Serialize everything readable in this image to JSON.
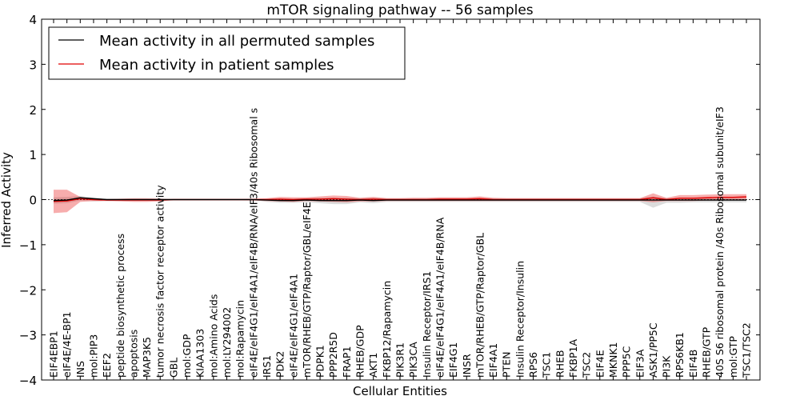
{
  "chart_data": {
    "type": "line",
    "title": "mTOR signaling pathway -- 56 samples",
    "xlabel": "Cellular Entities",
    "ylabel": "Inferred Activity",
    "ylim": [
      -4,
      4
    ],
    "yticks": [
      4,
      3,
      2,
      1,
      0,
      -1,
      -2,
      -3,
      -4
    ],
    "ytick_labels": [
      "4",
      "3",
      "2",
      "1",
      "0",
      "−1",
      "−2",
      "−3",
      "−4"
    ],
    "legend": {
      "placement": "top-left",
      "entries": [
        {
          "label": "Mean activity in all permuted samples",
          "color": "#000000"
        },
        {
          "label": "Mean activity in patient samples",
          "color": "#e00000"
        }
      ]
    },
    "categories": [
      "EIF4EBP1",
      "eIF4E/4E-BP1",
      "INS",
      "mol:PIP3",
      "EEF2",
      "peptide biosynthetic process",
      "apoptosis",
      "MAP3K5",
      "tumor necrosis factor receptor activity",
      "GBL",
      "mol:GDP",
      "KIAA1303",
      "mol:Amino Acids",
      "mol:LY294002",
      "mol:Rapamycin",
      "eIF4E/eIF4G1/eIF4A1/eIF4B/RNA/eIF3/40s Ribosomal s",
      "IRS1",
      "PDK2",
      "eIF4E/eIF4G1/eIF4A1",
      "mTOR/RHEB/GTP/Raptor/GBL/eIF4E",
      "PDPK1",
      "PPP2R5D",
      "FRAP1",
      "RHEB/GDP",
      "AKT1",
      "FKBP12/Rapamycin",
      "PIK3R1",
      "PIK3CA",
      "Insulin Receptor/IRS1",
      "eIF4E/eIF4G1/eIF4A1/eIF4B/RNA",
      "EIF4G1",
      "INSR",
      "mTOR/RHEB/GTP/Raptor/GBL",
      "EIF4A1",
      "PTEN",
      "Insulin Receptor/Insulin",
      "RPS6",
      "TSC1",
      "RHEB",
      "FKBP1A",
      "TSC2",
      "EIF4E",
      "MKNK1",
      "PPP5C",
      "EIF3A",
      "ASK1/PP5C",
      "PI3K",
      "RPS6KB1",
      "EIF4B",
      "RHEB/GTP",
      "40S S6 ribosomal protein /40s Ribosomal subunit/eIF3",
      "mol:GTP",
      "TSC1/TSC2"
    ],
    "series": [
      {
        "name": "Mean activity in all permuted samples",
        "color": "#000000",
        "values": [
          -0.02,
          -0.01,
          0.04,
          0.02,
          0.0,
          0.0,
          0.0,
          0.0,
          0.0,
          0.0,
          0.0,
          0.0,
          0.0,
          0.0,
          0.0,
          0.0,
          -0.01,
          -0.02,
          -0.02,
          -0.01,
          -0.02,
          -0.02,
          -0.02,
          -0.01,
          -0.02,
          -0.01,
          -0.01,
          -0.01,
          -0.01,
          -0.01,
          -0.01,
          -0.01,
          -0.01,
          -0.01,
          -0.01,
          -0.01,
          -0.01,
          -0.01,
          -0.01,
          -0.01,
          -0.01,
          -0.01,
          -0.01,
          -0.01,
          -0.01,
          -0.01,
          -0.01,
          -0.01,
          -0.01,
          -0.01,
          -0.01,
          -0.01,
          -0.01
        ],
        "band_upper": [
          0.05,
          0.06,
          0.08,
          0.04,
          0.02,
          0.02,
          0.02,
          0.02,
          0.02,
          0.01,
          0.01,
          0.01,
          0.01,
          0.01,
          0.01,
          0.01,
          0.02,
          0.02,
          0.02,
          0.03,
          0.04,
          0.04,
          0.04,
          0.03,
          0.04,
          0.03,
          0.03,
          0.03,
          0.03,
          0.03,
          0.03,
          0.03,
          0.03,
          0.03,
          0.03,
          0.03,
          0.03,
          0.03,
          0.03,
          0.03,
          0.03,
          0.03,
          0.03,
          0.03,
          0.03,
          0.07,
          0.03,
          0.03,
          0.03,
          0.03,
          0.03,
          0.03,
          0.03
        ],
        "band_lower": [
          -0.09,
          -0.08,
          -0.02,
          -0.04,
          -0.03,
          -0.02,
          -0.02,
          -0.02,
          -0.02,
          -0.01,
          -0.01,
          -0.01,
          -0.01,
          -0.01,
          -0.01,
          -0.01,
          -0.05,
          -0.07,
          -0.07,
          -0.06,
          -0.08,
          -0.1,
          -0.1,
          -0.06,
          -0.08,
          -0.05,
          -0.05,
          -0.05,
          -0.05,
          -0.05,
          -0.05,
          -0.05,
          -0.05,
          -0.05,
          -0.05,
          -0.05,
          -0.05,
          -0.05,
          -0.05,
          -0.05,
          -0.05,
          -0.05,
          -0.05,
          -0.05,
          -0.05,
          -0.18,
          -0.07,
          -0.07,
          -0.06,
          -0.06,
          -0.06,
          -0.06,
          -0.06
        ]
      },
      {
        "name": "Mean activity in patient samples",
        "color": "#e00000",
        "values": [
          -0.04,
          -0.03,
          0.02,
          0.0,
          -0.01,
          -0.01,
          -0.01,
          -0.01,
          -0.01,
          0.0,
          0.0,
          0.0,
          0.0,
          0.0,
          0.0,
          0.0,
          0.0,
          0.01,
          0.0,
          0.01,
          0.01,
          0.02,
          0.01,
          0.0,
          0.01,
          0.0,
          0.0,
          0.0,
          0.0,
          0.01,
          0.01,
          0.01,
          0.02,
          0.0,
          0.0,
          0.0,
          0.0,
          0.0,
          0.0,
          0.0,
          0.0,
          0.0,
          0.0,
          0.0,
          0.0,
          0.04,
          0.0,
          0.03,
          0.03,
          0.04,
          0.05,
          0.05,
          0.06
        ],
        "band_upper": [
          0.22,
          0.22,
          0.06,
          0.02,
          0.01,
          0.02,
          0.03,
          0.03,
          0.02,
          0.01,
          0.01,
          0.01,
          0.01,
          0.01,
          0.01,
          0.02,
          0.03,
          0.06,
          0.05,
          0.05,
          0.07,
          0.09,
          0.08,
          0.04,
          0.06,
          0.03,
          0.03,
          0.04,
          0.04,
          0.05,
          0.05,
          0.05,
          0.07,
          0.04,
          0.03,
          0.03,
          0.03,
          0.03,
          0.03,
          0.03,
          0.03,
          0.03,
          0.03,
          0.03,
          0.03,
          0.14,
          0.04,
          0.1,
          0.1,
          0.11,
          0.12,
          0.12,
          0.12
        ],
        "band_lower": [
          -0.3,
          -0.28,
          -0.05,
          -0.03,
          -0.03,
          -0.04,
          -0.05,
          -0.05,
          -0.04,
          -0.01,
          -0.01,
          -0.01,
          -0.01,
          -0.01,
          -0.01,
          -0.02,
          -0.03,
          -0.04,
          -0.05,
          -0.03,
          -0.04,
          -0.05,
          -0.06,
          -0.04,
          -0.04,
          -0.03,
          -0.03,
          -0.03,
          -0.03,
          -0.03,
          -0.03,
          -0.03,
          -0.03,
          -0.03,
          -0.03,
          -0.03,
          -0.03,
          -0.03,
          -0.03,
          -0.03,
          -0.03,
          -0.03,
          -0.03,
          -0.03,
          -0.03,
          -0.06,
          -0.03,
          -0.03,
          -0.03,
          -0.02,
          -0.02,
          -0.01,
          0.0
        ]
      }
    ]
  }
}
